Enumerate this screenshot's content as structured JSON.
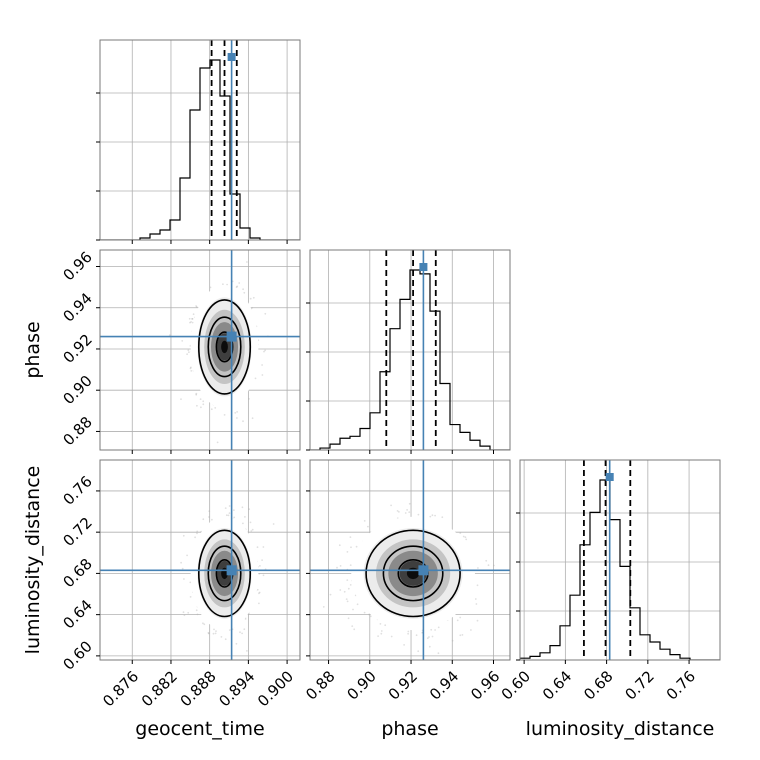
{
  "chart_data": {
    "type": "corner",
    "parameters": [
      {
        "name": "geocent_time",
        "label": "geocent_time",
        "range": [
          0.871,
          0.902
        ],
        "ticks": [
          "0.876",
          "0.882",
          "0.888",
          "0.894",
          "0.900"
        ],
        "truth": 0.8914,
        "quantiles": [
          0.8883,
          0.8903,
          0.8922
        ],
        "mean": 0.8903,
        "std": 0.0021
      },
      {
        "name": "phase",
        "label": "phase",
        "range": [
          0.871,
          0.968
        ],
        "ticks": [
          "0.88",
          "0.90",
          "0.92",
          "0.94",
          "0.96"
        ],
        "truth": 0.926,
        "quantiles": [
          0.908,
          0.921,
          0.932
        ],
        "mean": 0.921,
        "std": 0.012
      },
      {
        "name": "luminosity_distance",
        "label": "luminosity_distance",
        "range": [
          0.596,
          0.79
        ],
        "ticks": [
          "0.60",
          "0.64",
          "0.68",
          "0.72",
          "0.76"
        ],
        "truth": 0.683,
        "quantiles": [
          0.658,
          0.679,
          0.703
        ],
        "mean": 0.68,
        "std": 0.022
      }
    ],
    "histograms": [
      [
        0,
        0,
        0,
        0,
        1,
        3,
        5,
        10,
        31,
        65,
        86,
        90,
        72,
        23,
        6,
        1,
        0,
        0,
        0,
        0
      ],
      [
        0,
        1,
        3,
        6,
        7,
        11,
        19,
        40,
        62,
        77,
        92,
        90,
        71,
        34,
        13,
        9,
        5,
        2,
        0,
        0
      ],
      [
        1,
        2,
        4,
        8,
        19,
        36,
        64,
        82,
        100,
        78,
        52,
        29,
        14,
        10,
        6,
        3,
        1,
        0,
        0,
        0
      ]
    ],
    "legend": "none",
    "grid": true,
    "truth_color": "#4682b4"
  }
}
